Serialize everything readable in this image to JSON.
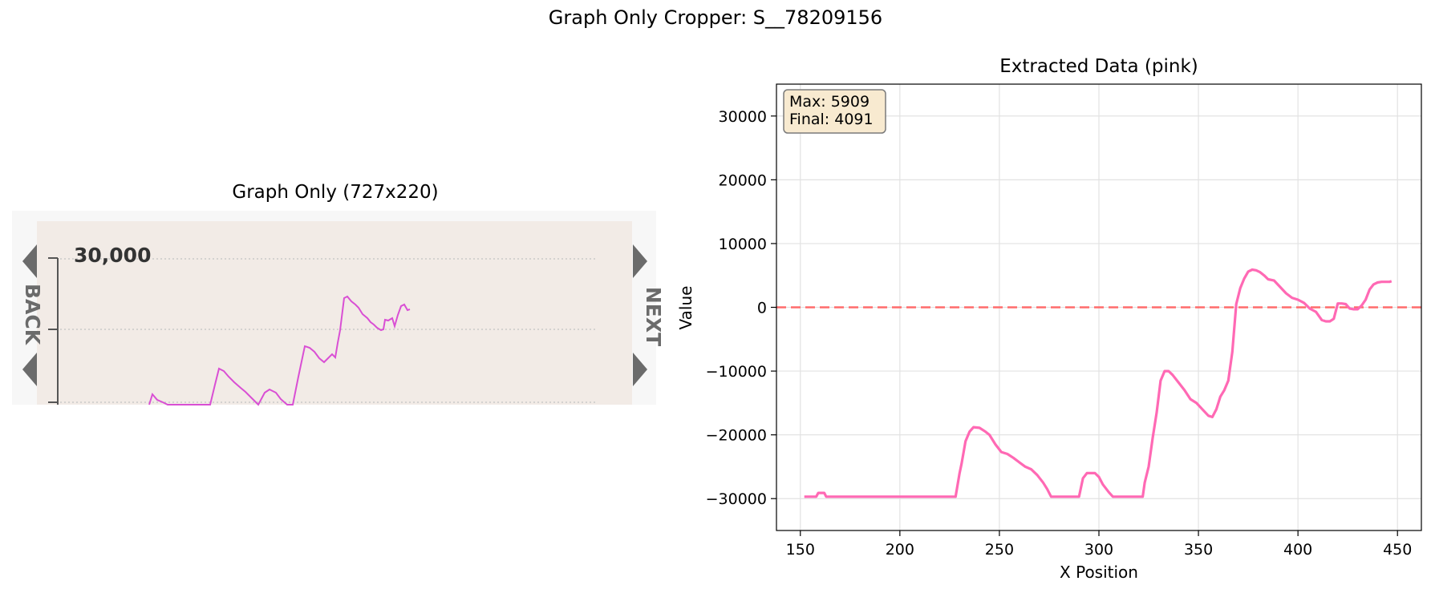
{
  "figure": {
    "suptitle": "Graph Only Cropper: S__78209156"
  },
  "left_panel": {
    "title": "Graph Only (727x220)",
    "image": {
      "y_tick_label": "30,000",
      "back_label": "BACK",
      "next_label": "NEXT",
      "colors": {
        "background": "#f2ebe6",
        "frame": "#f7f7f7",
        "line": "#d94fd4",
        "arrow": "#6b6b6b"
      }
    }
  },
  "chart_data": {
    "type": "line",
    "title": "Extracted Data (pink)",
    "xlabel": "X Position",
    "ylabel": "Value",
    "xlim": [
      138,
      462
    ],
    "ylim": [
      -35000,
      35000
    ],
    "xticks": [
      150,
      200,
      250,
      300,
      350,
      400,
      450
    ],
    "yticks": [
      -30000,
      -20000,
      -10000,
      0,
      10000,
      20000,
      30000
    ],
    "grid": true,
    "hline": {
      "y": 0,
      "style": "dashed",
      "color": "#ff6b6b"
    },
    "annotation": {
      "lines": [
        "Max: 5909",
        "Final: 4091"
      ],
      "placement": "top-left"
    },
    "series": [
      {
        "color": "#ff69b4",
        "x": [
          152,
          158,
          159,
          162,
          163,
          200,
          228,
          230,
          231,
          233,
          235,
          237,
          240,
          243,
          245,
          248,
          251,
          254,
          257,
          260,
          263,
          266,
          269,
          272,
          274,
          276,
          280,
          286,
          290,
          292,
          294,
          298,
          300,
          302,
          305,
          307,
          310,
          316,
          322,
          323,
          325,
          327,
          329,
          331,
          333,
          335,
          337,
          340,
          343,
          346,
          349,
          352,
          355,
          357,
          359,
          361,
          363,
          365,
          367,
          369,
          371,
          373,
          375,
          377,
          379,
          381,
          383,
          385,
          388,
          391,
          394,
          397,
          400,
          403,
          406,
          409,
          412,
          414,
          416,
          418,
          420,
          422,
          424,
          426,
          428,
          430,
          432,
          434,
          436,
          438,
          440,
          442,
          444,
          446,
          447
        ],
        "y": [
          -29700,
          -29700,
          -29100,
          -29100,
          -29700,
          -29700,
          -29700,
          -26000,
          -24500,
          -21000,
          -19500,
          -18800,
          -18900,
          -19500,
          -20000,
          -21500,
          -22700,
          -23000,
          -23600,
          -24300,
          -25000,
          -25400,
          -26300,
          -27500,
          -28500,
          -29700,
          -29700,
          -29700,
          -29700,
          -26800,
          -26000,
          -26000,
          -26600,
          -27800,
          -29000,
          -29700,
          -29700,
          -29700,
          -29700,
          -27500,
          -25000,
          -20500,
          -16500,
          -11500,
          -10000,
          -10000,
          -10600,
          -11800,
          -13000,
          -14400,
          -15000,
          -16000,
          -17000,
          -17200,
          -16000,
          -14000,
          -13000,
          -11500,
          -7000,
          500,
          3000,
          4500,
          5600,
          5909,
          5800,
          5500,
          5000,
          4400,
          4200,
          3200,
          2200,
          1500,
          1200,
          700,
          -200,
          -700,
          -2000,
          -2200,
          -2200,
          -1800,
          600,
          600,
          500,
          -200,
          -300,
          -300,
          300,
          1200,
          2800,
          3600,
          3900,
          4000,
          4000,
          4000,
          4091
        ]
      }
    ]
  }
}
